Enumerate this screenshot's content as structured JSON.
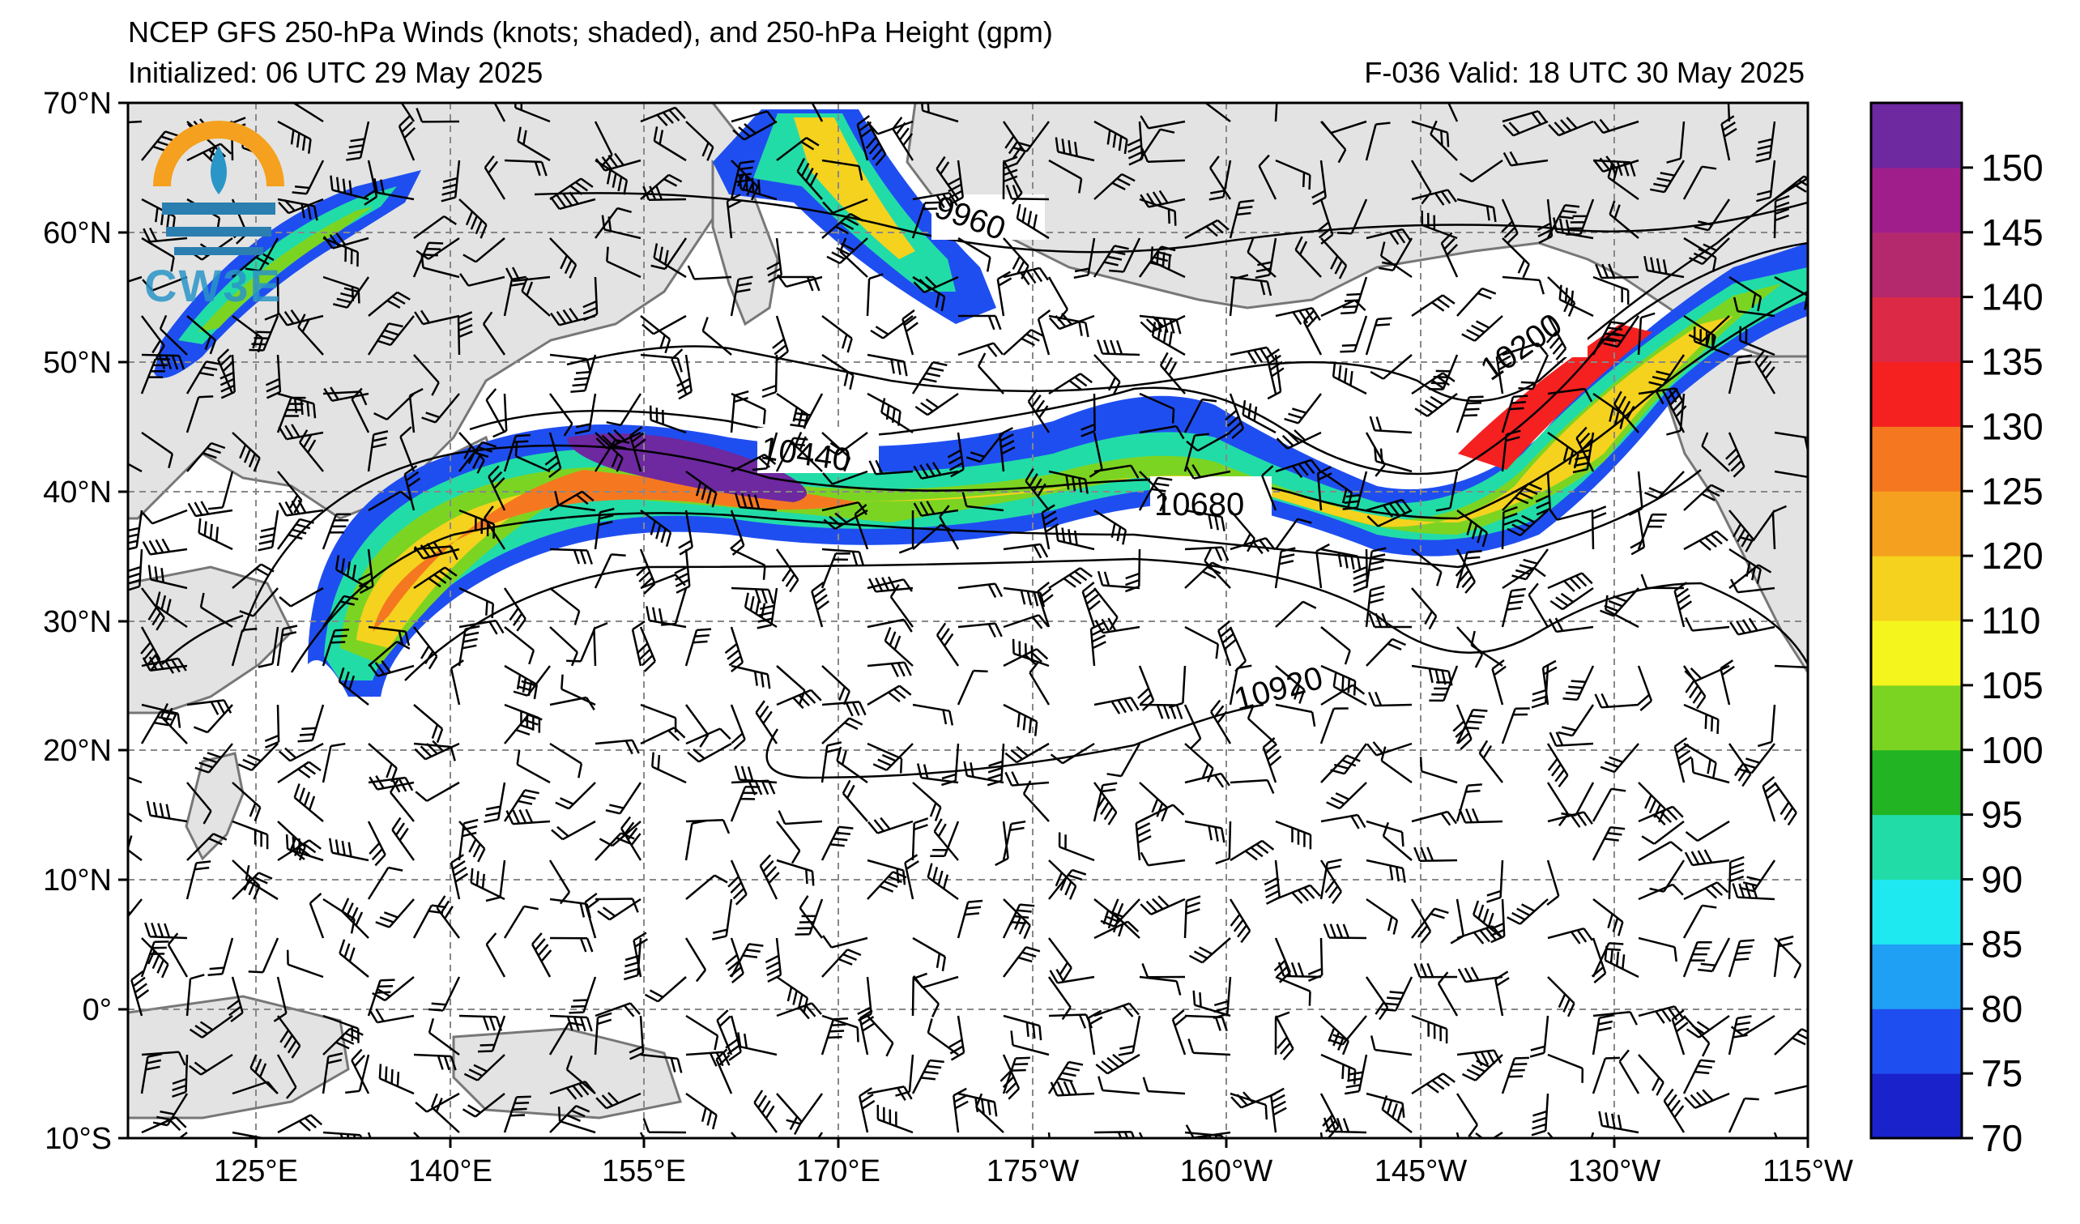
{
  "header": {
    "title": "NCEP GFS 250-hPa Winds (knots; shaded), and 250-hPa Height (gpm)",
    "initialized": "Initialized: 06 UTC 29 May 2025",
    "valid": "F-036  Valid: 18 UTC 30 May 2025"
  },
  "logo": {
    "text": "CW3E",
    "icon": "cw3e-logo-icon"
  },
  "axes": {
    "lat_labels": [
      "70°N",
      "60°N",
      "50°N",
      "40°N",
      "30°N",
      "20°N",
      "10°N",
      "0°",
      "10°S"
    ],
    "lon_labels": [
      "125°E",
      "140°E",
      "155°E",
      "170°E",
      "175°W",
      "160°W",
      "145°W",
      "130°W",
      "115°W"
    ]
  },
  "colorbar": {
    "labels": [
      "70",
      "75",
      "80",
      "85",
      "90",
      "95",
      "100",
      "105",
      "110",
      "120",
      "125",
      "130",
      "135",
      "140",
      "145",
      "150"
    ],
    "colors": [
      "#1a22cc",
      "#1f4ef0",
      "#20a0f5",
      "#1ee8f0",
      "#22dca8",
      "#22b422",
      "#7cd422",
      "#f5f51e",
      "#f5d21e",
      "#f5a01e",
      "#f57820",
      "#f52020",
      "#dc2a46",
      "#b4286e",
      "#a01e8c",
      "#6e28a0"
    ]
  },
  "contours": {
    "labels": [
      "9960",
      "10200",
      "10440",
      "10680",
      "10920"
    ]
  }
}
